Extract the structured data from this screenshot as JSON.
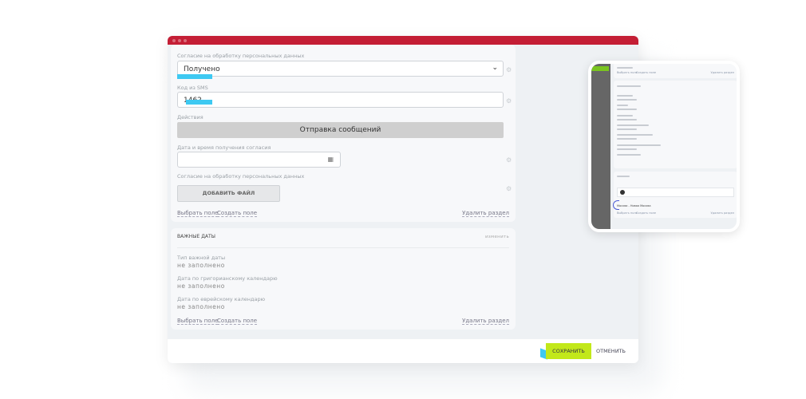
{
  "form": {
    "consent_label": "Согласие на обработку персональных данных",
    "consent_value": "Получено",
    "sms_label": "Код из SMS",
    "sms_value": "1462",
    "actions_label": "Действия",
    "send_button": "Отправка сообщений",
    "date_label": "Дата и время получения согласия",
    "date_value": "",
    "file_label": "Согласие на обработку персональных данных",
    "add_file_button": "ДОБАВИТЬ ФАЙЛ",
    "select_field": "Выбрать поле",
    "create_field": "Создать поле",
    "delete_section": "Удалить раздел"
  },
  "important_dates": {
    "title": "ВАЖНЫЕ ДАТЫ",
    "edit": "изменить",
    "fields": [
      {
        "label": "Тип важной даты",
        "value": "не заполнено"
      },
      {
        "label": "Дата по григорианскому календарю",
        "value": "не заполнено"
      },
      {
        "label": "Дата по еврейскому календарю",
        "value": "не заполнено"
      }
    ],
    "select_field": "Выбрать поле",
    "create_field": "Создать поле",
    "delete_section": "Удалить раздел"
  },
  "footer": {
    "save": "СОХРАНИТЬ",
    "cancel": "ОТМЕНИТЬ"
  },
  "thumbnail": {
    "location_value": "Москва - Новая Москва",
    "select_field": "Выбрать поле",
    "create_field": "Создать поле",
    "delete_section": "Удалить раздел"
  },
  "colors": {
    "titlebar": "#c41e35",
    "save": "#c2e81a",
    "highlight": "#3ec9f2"
  }
}
